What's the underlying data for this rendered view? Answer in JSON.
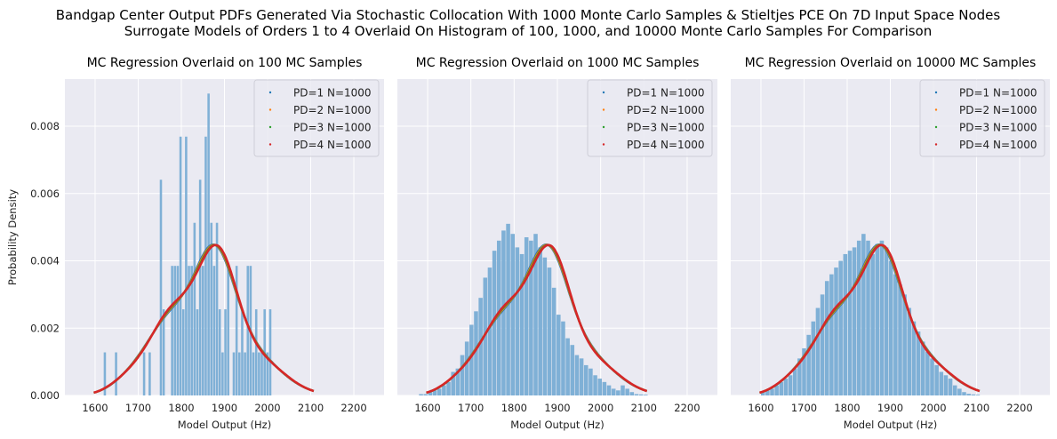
{
  "figure": {
    "title_line1": "Bandgap Center Output PDFs Generated Via Stochastic Collocation With 1000 Monte Carlo Samples & Stieltjes PCE On 7D Input Space Nodes",
    "title_line2": "Surrogate Models of Orders 1 to 4 Overlaid On Histogram of 100, 1000, and 10000 Monte Carlo Samples For Comparison",
    "background": "#eaeaf2",
    "grid_color": "#ffffff",
    "hist_color": "#7fb0d6",
    "series_colors": [
      "#1f77b4",
      "#ff7f0e",
      "#2ca02c",
      "#d62728"
    ]
  },
  "chart_data": [
    {
      "type": "bar",
      "title": "MC Regression Overlaid on 100 MC Samples",
      "xlabel": "Model Output (Hz)",
      "ylabel": "Probability Density",
      "xlim": [
        1530,
        2270
      ],
      "ylim": [
        0,
        0.0094
      ],
      "xticks": [
        1600,
        1700,
        1800,
        1900,
        2000,
        2100,
        2200
      ],
      "yticks": [
        0.0,
        0.002,
        0.004,
        0.006,
        0.008
      ],
      "ytick_labels": [
        "0.000",
        "0.002",
        "0.004",
        "0.006",
        "0.008"
      ],
      "grid": true,
      "legend": "top-right",
      "histogram": {
        "bin_edges_start": 1620,
        "bin_width": 6.5,
        "values": [
          0.00128,
          0,
          0,
          0,
          0.00128,
          0,
          0,
          0,
          0,
          0,
          0,
          0,
          0,
          0,
          0.00128,
          0,
          0.00128,
          0,
          0,
          0,
          0.00641,
          0.00256,
          0,
          0,
          0.00385,
          0.00385,
          0.00385,
          0.00769,
          0.00256,
          0.00769,
          0.00385,
          0.00385,
          0.00513,
          0.00256,
          0.00641,
          0.00385,
          0.00769,
          0.00897,
          0.00513,
          0.00385,
          0.00513,
          0.00256,
          0.00128,
          0.00256,
          0.00385,
          0,
          0.00128,
          0.00385,
          0.00128,
          0.00256,
          0.00128,
          0.00385,
          0.00385,
          0.00128,
          0.00256,
          0.00128,
          0.00128,
          0.00256,
          0.00128,
          0.00256
        ]
      },
      "series": [
        {
          "name": "PD=1 N=1000"
        },
        {
          "name": "PD=2 N=1000"
        },
        {
          "name": "PD=3 N=1000"
        },
        {
          "name": "PD=4 N=1000"
        }
      ]
    },
    {
      "type": "bar",
      "title": "MC Regression Overlaid on 1000 MC Samples",
      "xlabel": "Model Output (Hz)",
      "ylabel": "",
      "xlim": [
        1530,
        2270
      ],
      "ylim": [
        0,
        0.0094
      ],
      "xticks": [
        1600,
        1700,
        1800,
        1900,
        2000,
        2100,
        2200
      ],
      "yticks": [
        0.0,
        0.002,
        0.004,
        0.006,
        0.008
      ],
      "grid": true,
      "legend": "top-right",
      "histogram": {
        "bin_edges_start": 1580,
        "bin_width": 10.6,
        "values": [
          4e-05,
          4e-05,
          0.0001,
          0.00015,
          0.0002,
          0.0003,
          0.0004,
          0.0007,
          0.0008,
          0.0012,
          0.0016,
          0.0021,
          0.0025,
          0.0029,
          0.0035,
          0.0038,
          0.0043,
          0.0046,
          0.0049,
          0.0051,
          0.0048,
          0.0044,
          0.0042,
          0.0047,
          0.0046,
          0.0048,
          0.0044,
          0.0041,
          0.0038,
          0.0032,
          0.0024,
          0.0022,
          0.0017,
          0.0015,
          0.0012,
          0.0011,
          0.0009,
          0.0008,
          0.0006,
          0.0005,
          0.0004,
          0.0003,
          0.0002,
          0.00015,
          0.0003,
          0.0002,
          0.0001,
          4e-05,
          3e-05,
          2e-05
        ]
      },
      "series": [
        {
          "name": "PD=1 N=1000"
        },
        {
          "name": "PD=2 N=1000"
        },
        {
          "name": "PD=3 N=1000"
        },
        {
          "name": "PD=4 N=1000"
        }
      ]
    },
    {
      "type": "bar",
      "title": "MC Regression Overlaid on 10000 MC Samples",
      "xlabel": "Model Output (Hz)",
      "ylabel": "",
      "xlim": [
        1530,
        2270
      ],
      "ylim": [
        0,
        0.0094
      ],
      "xticks": [
        1600,
        1700,
        1800,
        1900,
        2000,
        2100,
        2200
      ],
      "yticks": [
        0.0,
        0.002,
        0.004,
        0.006,
        0.008
      ],
      "grid": true,
      "legend": "top-right",
      "histogram": {
        "bin_edges_start": 1600,
        "bin_width": 10.6,
        "values": [
          0.0001,
          0.00015,
          0.0002,
          0.0003,
          0.0004,
          0.0005,
          0.0006,
          0.0008,
          0.0011,
          0.0014,
          0.0018,
          0.0022,
          0.0026,
          0.003,
          0.0034,
          0.0036,
          0.0038,
          0.004,
          0.0042,
          0.0043,
          0.0044,
          0.0046,
          0.0048,
          0.0046,
          0.0042,
          0.0045,
          0.0046,
          0.0044,
          0.004,
          0.0036,
          0.0033,
          0.003,
          0.0026,
          0.0022,
          0.0019,
          0.0016,
          0.0013,
          0.0011,
          0.0009,
          0.0007,
          0.0006,
          0.0005,
          0.0003,
          0.0002,
          0.0001,
          5e-05,
          3e-05,
          2e-05
        ]
      },
      "series": [
        {
          "name": "PD=1 N=1000"
        },
        {
          "name": "PD=2 N=1000"
        },
        {
          "name": "PD=3 N=1000"
        },
        {
          "name": "PD=4 N=1000"
        }
      ]
    }
  ]
}
